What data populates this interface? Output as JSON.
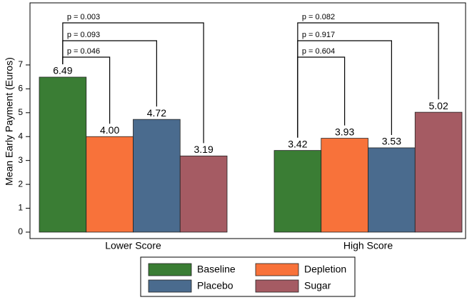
{
  "chart_data": {
    "type": "bar",
    "y_label": "Mean Early Payment (Euros)",
    "categories": [
      "Lower Score",
      "High Score"
    ],
    "series": [
      {
        "name": "Baseline",
        "color": "#3a7d34",
        "values": [
          6.49,
          3.42
        ],
        "value_labels": [
          "6.49",
          "3.42"
        ]
      },
      {
        "name": "Depletion",
        "color": "#f8723a",
        "values": [
          4.0,
          3.93
        ],
        "value_labels": [
          "4.00",
          "3.93"
        ]
      },
      {
        "name": "Placebo",
        "color": "#4a6b8e",
        "values": [
          4.72,
          3.53
        ],
        "value_labels": [
          "4.72",
          "3.53"
        ]
      },
      {
        "name": "Sugar",
        "color": "#a55b63",
        "values": [
          3.19,
          5.02
        ],
        "value_labels": [
          "3.19",
          "5.02"
        ]
      }
    ],
    "comparisons": [
      [
        "p = 0.046",
        "p = 0.093",
        "p = 0.003"
      ],
      [
        "p = 0.604",
        "p = 0.917",
        "p = 0.082"
      ]
    ],
    "ylim": [
      -0.27,
      9.6
    ],
    "yticks": [
      0,
      1,
      2,
      3,
      4,
      5,
      6,
      7
    ]
  }
}
